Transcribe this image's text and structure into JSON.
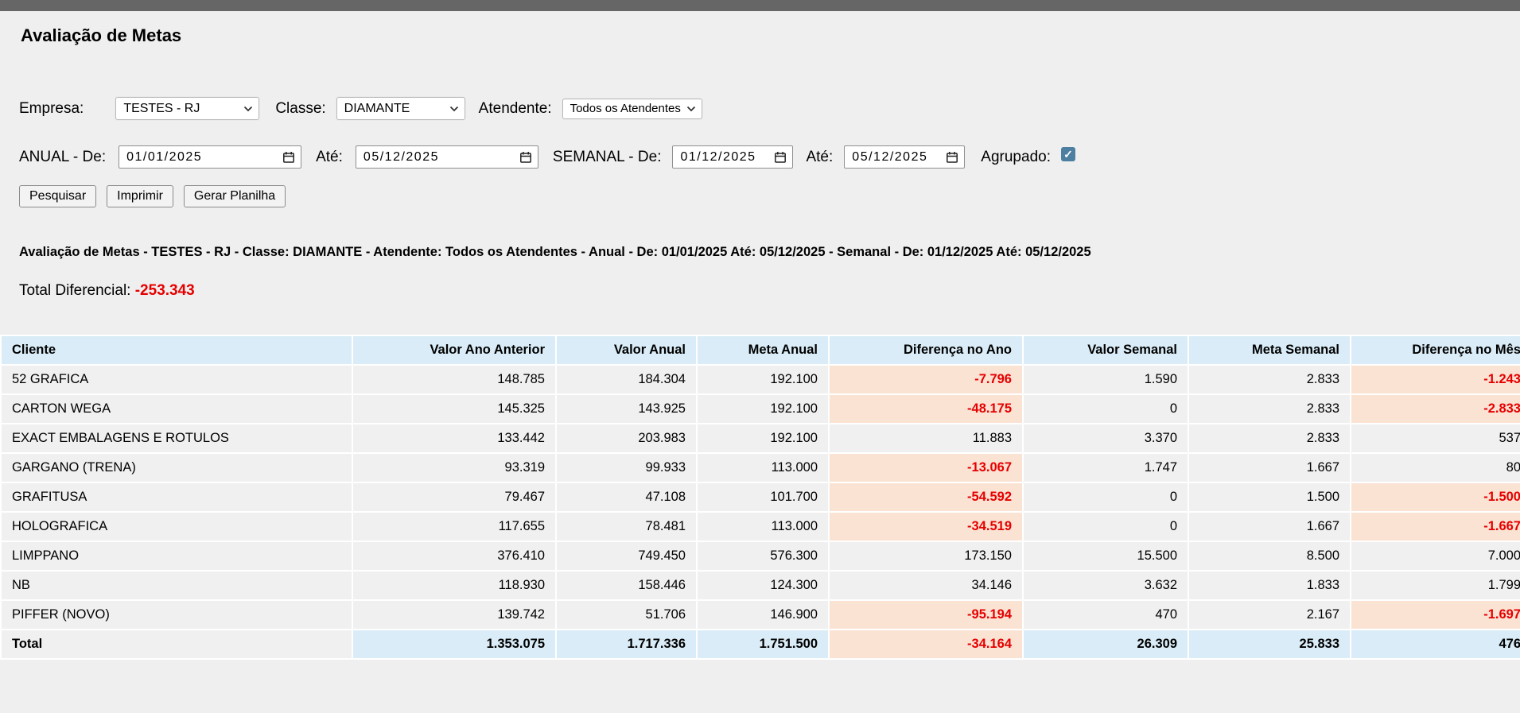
{
  "page": {
    "title": "Avaliação de Metas"
  },
  "filters": {
    "empresa": {
      "label": "Empresa:",
      "value": "TESTES - RJ"
    },
    "classe": {
      "label": "Classe:",
      "value": "DIAMANTE"
    },
    "atendente": {
      "label": "Atendente:",
      "value": "Todos os Atendentes"
    },
    "anual": {
      "label": "ANUAL - De:",
      "de": "01/01/2025",
      "ate_label": "Até:",
      "ate": "05/12/2025"
    },
    "semanal": {
      "label": "SEMANAL - De:",
      "de": "01/12/2025",
      "ate_label": "Até:",
      "ate": "05/12/2025"
    },
    "agrupado": {
      "label": "Agrupado:",
      "checked": true
    }
  },
  "actions": {
    "pesquisar": "Pesquisar",
    "imprimir": "Imprimir",
    "gerar_planilha": "Gerar Planilha"
  },
  "summary": {
    "line": "Avaliação de Metas - TESTES - RJ - Classe: DIAMANTE - Atendente: Todos os Atendentes - Anual - De: 01/01/2025 Até: 05/12/2025 - Semanal - De: 01/12/2025 Até: 05/12/2025",
    "total_diferencial_label": "Total Diferencial:",
    "total_diferencial_value": "-253.343"
  },
  "table": {
    "columns": [
      "Cliente",
      "Valor Ano Anterior",
      "Valor Anual",
      "Meta Anual",
      "Diferença no Ano",
      "Valor Semanal",
      "Meta Semanal",
      "Diferença no Mês"
    ],
    "rows": [
      [
        "52 GRAFICA",
        "148.785",
        "184.304",
        "192.100",
        "-7.796",
        "1.590",
        "2.833",
        "-1.243"
      ],
      [
        "CARTON WEGA",
        "145.325",
        "143.925",
        "192.100",
        "-48.175",
        "0",
        "2.833",
        "-2.833"
      ],
      [
        "EXACT EMBALAGENS E ROTULOS",
        "133.442",
        "203.983",
        "192.100",
        "11.883",
        "3.370",
        "2.833",
        "537"
      ],
      [
        "GARGANO (TRENA)",
        "93.319",
        "99.933",
        "113.000",
        "-13.067",
        "1.747",
        "1.667",
        "80"
      ],
      [
        "GRAFITUSA",
        "79.467",
        "47.108",
        "101.700",
        "-54.592",
        "0",
        "1.500",
        "-1.500"
      ],
      [
        "HOLOGRAFICA",
        "117.655",
        "78.481",
        "113.000",
        "-34.519",
        "0",
        "1.667",
        "-1.667"
      ],
      [
        "LIMPPANO",
        "376.410",
        "749.450",
        "576.300",
        "173.150",
        "15.500",
        "8.500",
        "7.000"
      ],
      [
        "NB",
        "118.930",
        "158.446",
        "124.300",
        "34.146",
        "3.632",
        "1.833",
        "1.799"
      ],
      [
        "PIFFER (NOVO)",
        "139.742",
        "51.706",
        "146.900",
        "-95.194",
        "470",
        "2.167",
        "-1.697"
      ]
    ],
    "total_row": [
      "Total",
      "1.353.075",
      "1.717.336",
      "1.751.500",
      "-34.164",
      "26.309",
      "25.833",
      "476"
    ]
  },
  "colors": {
    "top_bar": "#666666",
    "page_background": "#efefef",
    "table_header_background": "#d9ecf7",
    "negative_cell_background": "#fbe3d4",
    "negative_text": "#e60000",
    "checkbox_checked": "#4d7fa0"
  }
}
